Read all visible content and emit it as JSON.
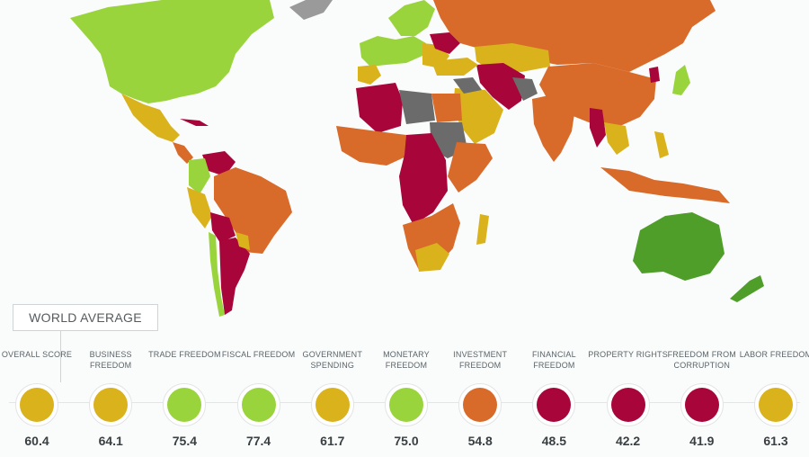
{
  "colors": {
    "background": "#fafbfb",
    "free": "#4f9e2a",
    "mostly_free": "#9ad43c",
    "moderately_free": "#d9b21c",
    "mostly_unfree": "#d86a2a",
    "repressed": "#a8053a",
    "not_graded": "#6b6b6b",
    "not_graded_light": "#9a9a9a"
  },
  "world_average": {
    "title": "WORLD AVERAGE"
  },
  "metrics": [
    {
      "label": "OVERALL SCORE",
      "value": "60.4",
      "color": "#d9b21c"
    },
    {
      "label": "BUSINESS FREEDOM",
      "value": "64.1",
      "color": "#d9b21c"
    },
    {
      "label": "TRADE FREEDOM",
      "value": "75.4",
      "color": "#9ad43c"
    },
    {
      "label": "FISCAL FREEDOM",
      "value": "77.4",
      "color": "#9ad43c"
    },
    {
      "label": "GOVERNMENT SPENDING",
      "value": "61.7",
      "color": "#d9b21c"
    },
    {
      "label": "MONETARY FREEDOM",
      "value": "75.0",
      "color": "#9ad43c"
    },
    {
      "label": "INVESTMENT FREEDOM",
      "value": "54.8",
      "color": "#d86a2a"
    },
    {
      "label": "FINANCIAL FREEDOM",
      "value": "48.5",
      "color": "#a8053a"
    },
    {
      "label": "PROPERTY RIGHTS",
      "value": "42.2",
      "color": "#a8053a"
    },
    {
      "label": "FREEDOM FROM CORRUPTION",
      "value": "41.9",
      "color": "#a8053a"
    },
    {
      "label": "LABOR FREEDOM",
      "value": "61.3",
      "color": "#d9b21c"
    }
  ]
}
